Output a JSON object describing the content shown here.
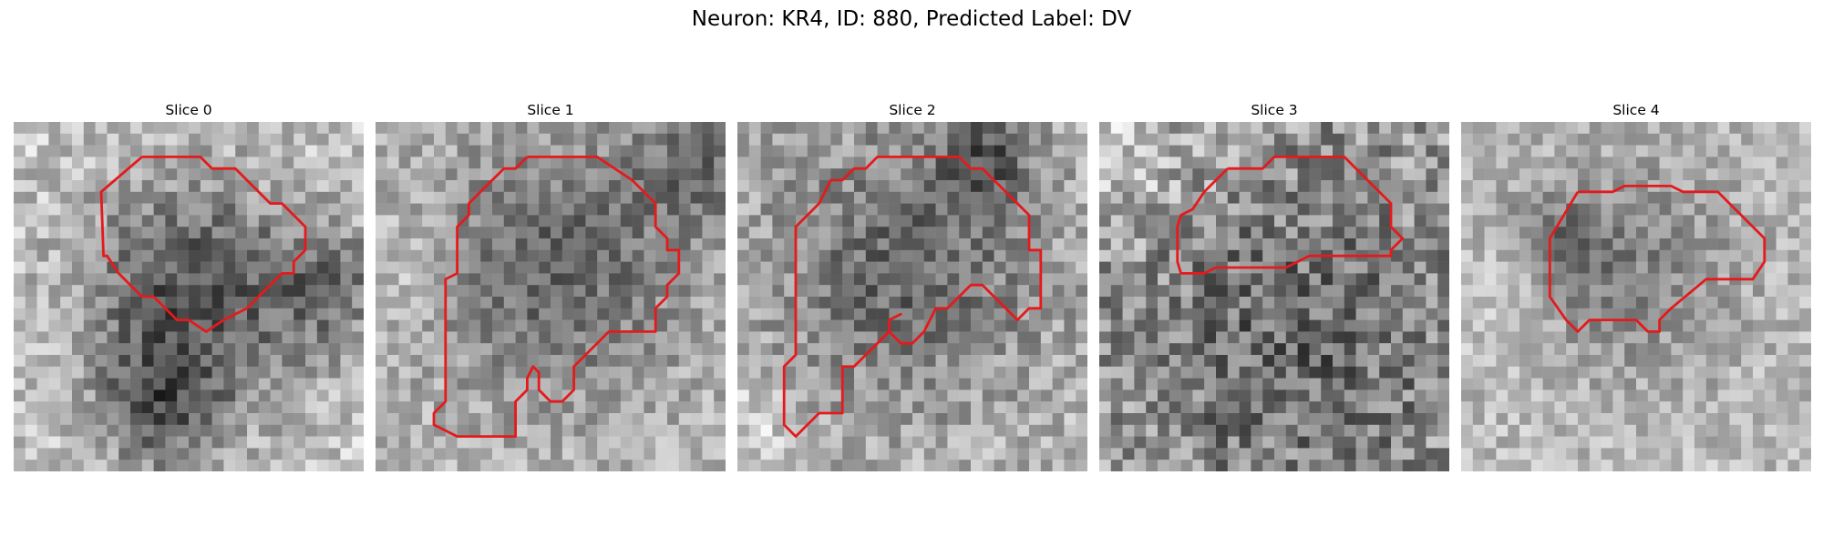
{
  "figure": {
    "title": "Neuron: KR4, ID: 880, Predicted Label: DV",
    "contour_color": "#e41a1c"
  },
  "panels": [
    {
      "title": "Slice 0"
    },
    {
      "title": "Slice 1"
    },
    {
      "title": "Slice 2"
    },
    {
      "title": "Slice 3"
    },
    {
      "title": "Slice 4"
    }
  ]
}
